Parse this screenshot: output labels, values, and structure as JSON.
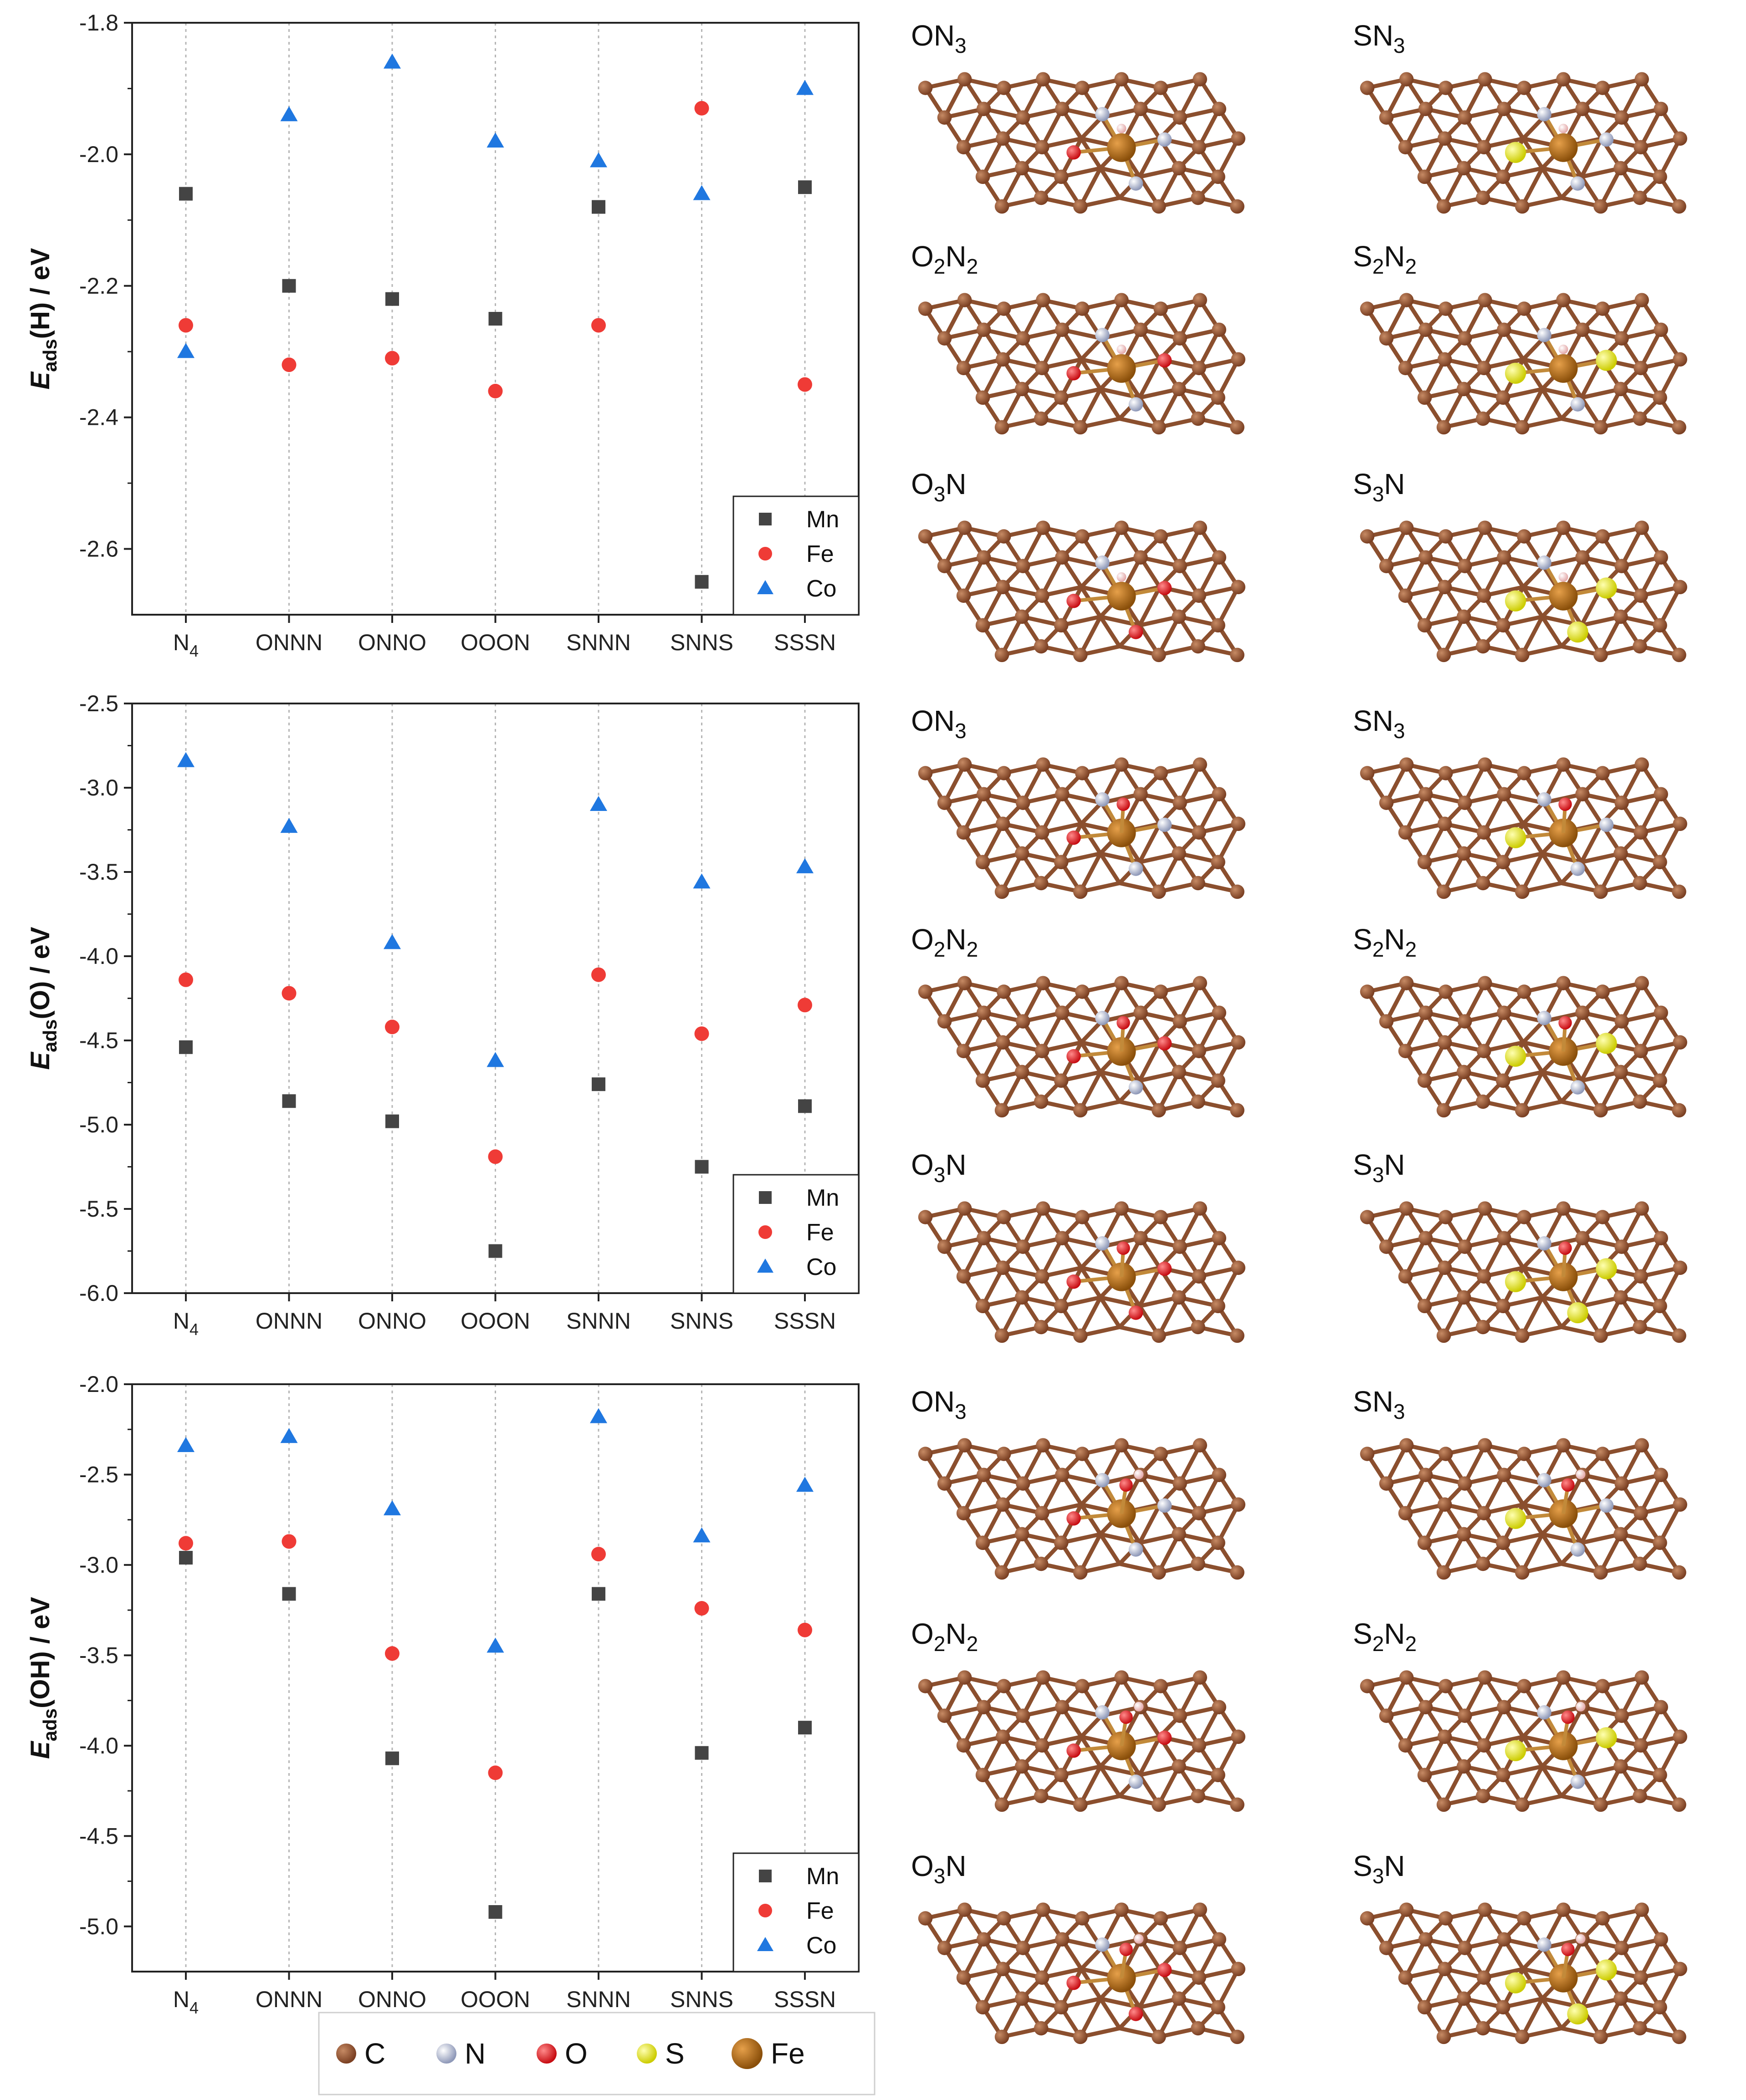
{
  "colors": {
    "Mn": "#444444",
    "Fe": "#ef3b36",
    "Co": "#1f77e0",
    "C": "#8b4f2e",
    "N": "#a8b2cc",
    "O": "#e8141a",
    "S": "#ecec1a",
    "Fe_atom": "#b8741a",
    "H": "#f0c8c8"
  },
  "chart_data": [
    {
      "type": "scatter",
      "ylabel": {
        "main": "E",
        "sub": "ads",
        "tail": "(H) / eV"
      },
      "ylim": [
        -2.7,
        -1.8
      ],
      "yticks": [
        "-1.8",
        "-2.0",
        "-2.2",
        "-2.4",
        "-2.6"
      ],
      "categories": [
        "N4",
        "ONNN",
        "ONNO",
        "OOON",
        "SNNN",
        "SNNS",
        "SSSN"
      ],
      "category_labels": [
        {
          "t": "N",
          "s": "4"
        },
        {
          "t": "ONNN",
          "s": ""
        },
        {
          "t": "ONNO",
          "s": ""
        },
        {
          "t": "OOON",
          "s": ""
        },
        {
          "t": "SNNN",
          "s": ""
        },
        {
          "t": "SNNS",
          "s": ""
        },
        {
          "t": "SSSN",
          "s": ""
        }
      ],
      "series": [
        {
          "name": "Mn",
          "marker": "square",
          "values": [
            -2.06,
            -2.2,
            -2.22,
            -2.25,
            -2.08,
            -2.65,
            -2.05
          ]
        },
        {
          "name": "Fe",
          "marker": "circle",
          "values": [
            -2.26,
            -2.32,
            -2.31,
            -2.36,
            -2.26,
            -1.93,
            -2.35
          ]
        },
        {
          "name": "Co",
          "marker": "triangle",
          "values": [
            -2.3,
            -1.94,
            -1.86,
            -1.98,
            -2.01,
            -2.06,
            -1.9
          ]
        }
      ],
      "legend": "bottom-right"
    },
    {
      "type": "scatter",
      "ylabel": {
        "main": "E",
        "sub": "ads",
        "tail": "(O) / eV"
      },
      "ylim": [
        -6.0,
        -2.5
      ],
      "yticks": [
        "-2.5",
        "-3.0",
        "-3.5",
        "-4.0",
        "-4.5",
        "-5.0",
        "-5.5",
        "-6.0"
      ],
      "categories": [
        "N4",
        "ONNN",
        "ONNO",
        "OOON",
        "SNNN",
        "SNNS",
        "SSSN"
      ],
      "category_labels": [
        {
          "t": "N",
          "s": "4"
        },
        {
          "t": "ONNN",
          "s": ""
        },
        {
          "t": "ONNO",
          "s": ""
        },
        {
          "t": "OOON",
          "s": ""
        },
        {
          "t": "SNNN",
          "s": ""
        },
        {
          "t": "SNNS",
          "s": ""
        },
        {
          "t": "SSSN",
          "s": ""
        }
      ],
      "series": [
        {
          "name": "Mn",
          "marker": "square",
          "values": [
            -4.54,
            -4.86,
            -4.98,
            -5.75,
            -4.76,
            -5.25,
            -4.89
          ]
        },
        {
          "name": "Fe",
          "marker": "circle",
          "values": [
            -4.14,
            -4.22,
            -4.42,
            -5.19,
            -4.11,
            -4.46,
            -4.29
          ]
        },
        {
          "name": "Co",
          "marker": "triangle",
          "values": [
            -2.84,
            -3.23,
            -3.92,
            -4.62,
            -3.1,
            -3.56,
            -3.47
          ]
        }
      ],
      "legend": "bottom-right"
    },
    {
      "type": "scatter",
      "ylabel": {
        "main": "E",
        "sub": "ads",
        "tail": "(OH) / eV"
      },
      "ylim": [
        -5.25,
        -2.0
      ],
      "yticks": [
        "-2.0",
        "-2.5",
        "-3.0",
        "-3.5",
        "-4.0",
        "-4.5",
        "-5.0"
      ],
      "categories": [
        "N4",
        "ONNN",
        "ONNO",
        "OOON",
        "SNNN",
        "SNNS",
        "SSSN"
      ],
      "category_labels": [
        {
          "t": "N",
          "s": "4"
        },
        {
          "t": "ONNN",
          "s": ""
        },
        {
          "t": "ONNO",
          "s": ""
        },
        {
          "t": "OOON",
          "s": ""
        },
        {
          "t": "SNNN",
          "s": ""
        },
        {
          "t": "SNNS",
          "s": ""
        },
        {
          "t": "SSSN",
          "s": ""
        }
      ],
      "series": [
        {
          "name": "Mn",
          "marker": "square",
          "values": [
            -2.96,
            -3.16,
            -4.07,
            -4.92,
            -3.16,
            -4.04,
            -3.9
          ]
        },
        {
          "name": "Fe",
          "marker": "circle",
          "values": [
            -2.88,
            -2.87,
            -3.49,
            -4.15,
            -2.94,
            -3.24,
            -3.36
          ]
        },
        {
          "name": "Co",
          "marker": "triangle",
          "values": [
            -2.34,
            -2.29,
            -2.69,
            -3.45,
            -2.18,
            -2.84,
            -2.56
          ]
        }
      ],
      "legend": "bottom-right"
    }
  ],
  "structures": {
    "labels": [
      [
        {
          "t": "ON",
          "s": "3"
        },
        {
          "t": "SN",
          "s": "3"
        }
      ],
      [
        {
          "t": "O",
          "s": "2",
          "t2": "N",
          "s2": "2"
        },
        {
          "t": "S",
          "s": "2",
          "t2": "N",
          "s2": "2"
        }
      ],
      [
        {
          "t": "O",
          "s": "3",
          "t2": "N",
          "s2": ""
        },
        {
          "t": "S",
          "s": "3",
          "t2": "N",
          "s2": ""
        }
      ]
    ],
    "adsorbate": [
      "H",
      "O",
      "OH"
    ]
  },
  "atom_legend": [
    {
      "label": "C",
      "color_key": "C"
    },
    {
      "label": "N",
      "color_key": "N"
    },
    {
      "label": "O",
      "color_key": "O"
    },
    {
      "label": "S",
      "color_key": "S"
    },
    {
      "label": "Fe",
      "color_key": "Fe_atom"
    }
  ]
}
